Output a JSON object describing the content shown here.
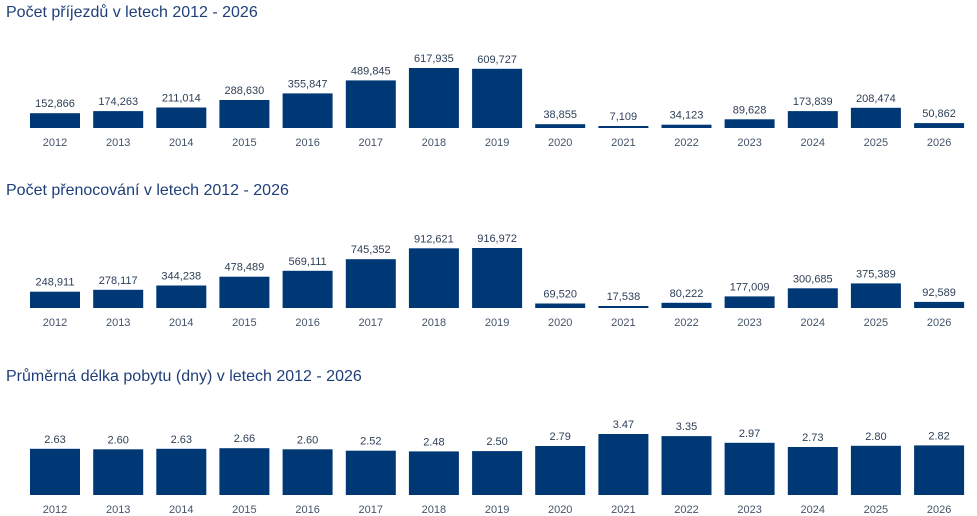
{
  "colors": {
    "bar": "#003876",
    "title": "#1f3f7a",
    "text": "#2d3f57",
    "tick": "#44546a"
  },
  "chart_data": [
    {
      "type": "bar",
      "title": "Počet příjezdů v letech 2012 - 2026",
      "categories": [
        "2012",
        "2013",
        "2014",
        "2015",
        "2016",
        "2017",
        "2018",
        "2019",
        "2020",
        "2021",
        "2022",
        "2023",
        "2024",
        "2025",
        "2026"
      ],
      "values": [
        152866,
        174263,
        211014,
        288630,
        355847,
        489845,
        617935,
        609727,
        38855,
        7109,
        34123,
        89628,
        173839,
        208474,
        50862
      ],
      "value_labels": [
        "152,866",
        "174,263",
        "211,014",
        "288,630",
        "355,847",
        "489,845",
        "617,935",
        "609,727",
        "38,855",
        "7,109",
        "34,123",
        "89,628",
        "173,839",
        "208,474",
        "50,862"
      ],
      "ylim": [
        0,
        617935
      ],
      "xlabel": "",
      "ylabel": "",
      "grid": false
    },
    {
      "type": "bar",
      "title": "Počet přenocování v letech 2012 - 2026",
      "categories": [
        "2012",
        "2013",
        "2014",
        "2015",
        "2016",
        "2017",
        "2018",
        "2019",
        "2020",
        "2021",
        "2022",
        "2023",
        "2024",
        "2025",
        "2026"
      ],
      "values": [
        248911,
        278117,
        344238,
        478489,
        569111,
        745352,
        912621,
        916972,
        69520,
        17538,
        80222,
        177009,
        300685,
        375389,
        92589
      ],
      "value_labels": [
        "248,911",
        "278,117",
        "344,238",
        "478,489",
        "569,111",
        "745,352",
        "912,621",
        "916,972",
        "69,520",
        "17,538",
        "80,222",
        "177,009",
        "300,685",
        "375,389",
        "92,589"
      ],
      "ylim": [
        0,
        916972
      ],
      "xlabel": "",
      "ylabel": "",
      "grid": false
    },
    {
      "type": "bar",
      "title": "Průměrná délka pobytu (dny) v letech 2012 - 2026",
      "categories": [
        "2012",
        "2013",
        "2014",
        "2015",
        "2016",
        "2017",
        "2018",
        "2019",
        "2020",
        "2021",
        "2022",
        "2023",
        "2024",
        "2025",
        "2026"
      ],
      "values": [
        2.63,
        2.6,
        2.63,
        2.66,
        2.6,
        2.52,
        2.48,
        2.5,
        2.79,
        3.47,
        3.35,
        2.97,
        2.73,
        2.8,
        2.82
      ],
      "value_labels": [
        "2.63",
        "2.60",
        "2.63",
        "2.66",
        "2.60",
        "2.52",
        "2.48",
        "2.50",
        "2.79",
        "3.47",
        "3.35",
        "2.97",
        "2.73",
        "2.80",
        "2.82"
      ],
      "ylim": [
        0,
        3.47
      ],
      "xlabel": "",
      "ylabel": "",
      "grid": false
    }
  ]
}
